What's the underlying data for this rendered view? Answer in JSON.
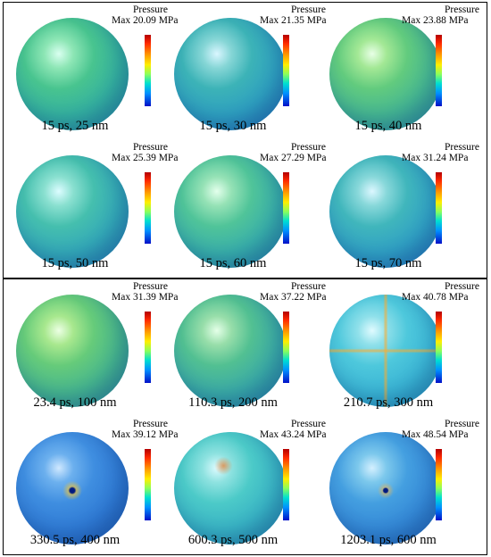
{
  "colorbar_title": "Pressure",
  "panels": [
    {
      "cells": [
        {
          "caption": "15 ps, 25 nm",
          "max_label": "Max 20.09 MPa"
        },
        {
          "caption": "15 ps, 30 nm",
          "max_label": "Max 21.35 MPa"
        },
        {
          "caption": "15 ps, 40 nm",
          "max_label": "Max 23.88 MPa"
        },
        {
          "caption": "15 ps, 50 nm",
          "max_label": "Max 25.39 MPa"
        },
        {
          "caption": "15 ps, 60 nm",
          "max_label": "Max 27.29 MPa"
        },
        {
          "caption": "15 ps, 70 nm",
          "max_label": "Max 31.24 MPa"
        }
      ]
    },
    {
      "cells": [
        {
          "caption": "23.4 ps, 100 nm",
          "max_label": "Max 31.39 MPa"
        },
        {
          "caption": "110.3 ps, 200 nm",
          "max_label": "Max 37.22 MPa"
        },
        {
          "caption": "210.7 ps, 300 nm",
          "max_label": "Max 40.78 MPa"
        },
        {
          "caption": "330.5 ps, 400 nm",
          "max_label": "Max 39.12 MPa"
        },
        {
          "caption": "600.3 ps, 500 nm",
          "max_label": "Max 43.24 MPa"
        },
        {
          "caption": "1203.1 ps, 600 nm",
          "max_label": "Max 48.54 MPa"
        }
      ]
    }
  ],
  "colors": {
    "greenish": "#56c98a",
    "teal": "#2fb7b6",
    "blue": "#2b7fd0",
    "deep_blue": "#1a5fb8"
  }
}
